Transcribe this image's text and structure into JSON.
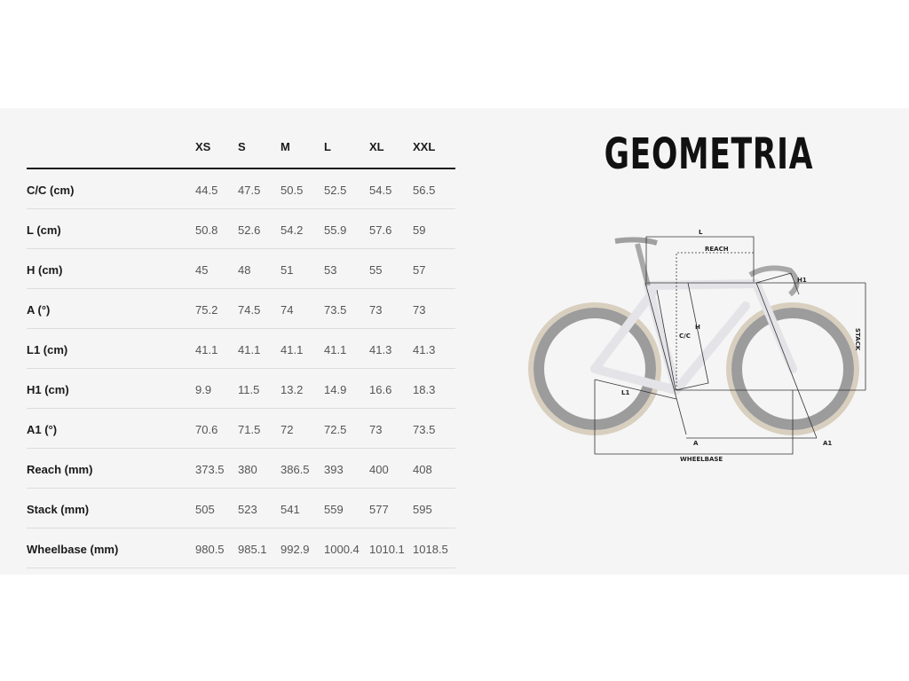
{
  "title": "GEOMETRIA",
  "table": {
    "sizes": [
      "XS",
      "S",
      "M",
      "L",
      "XL",
      "XXL"
    ],
    "rows": [
      {
        "label": "C/C (cm)",
        "values": [
          "44.5",
          "47.5",
          "50.5",
          "52.5",
          "54.5",
          "56.5"
        ]
      },
      {
        "label": "L (cm)",
        "values": [
          "50.8",
          "52.6",
          "54.2",
          "55.9",
          "57.6",
          "59"
        ]
      },
      {
        "label": "H (cm)",
        "values": [
          "45",
          "48",
          "51",
          "53",
          "55",
          "57"
        ]
      },
      {
        "label": "A (°)",
        "values": [
          "75.2",
          "74.5",
          "74",
          "73.5",
          "73",
          "73"
        ]
      },
      {
        "label": "L1 (cm)",
        "values": [
          "41.1",
          "41.1",
          "41.1",
          "41.1",
          "41.3",
          "41.3"
        ]
      },
      {
        "label": "H1 (cm)",
        "values": [
          "9.9",
          "11.5",
          "13.2",
          "14.9",
          "16.6",
          "18.3"
        ]
      },
      {
        "label": "A1 (°)",
        "values": [
          "70.6",
          "71.5",
          "72",
          "72.5",
          "73",
          "73.5"
        ]
      },
      {
        "label": "Reach (mm)",
        "values": [
          "373.5",
          "380",
          "386.5",
          "393",
          "400",
          "408"
        ]
      },
      {
        "label": "Stack (mm)",
        "values": [
          "505",
          "523",
          "541",
          "559",
          "577",
          "595"
        ]
      },
      {
        "label": "Wheelbase (mm)",
        "values": [
          "980.5",
          "985.1",
          "992.9",
          "1000.4",
          "1010.1",
          "1018.5"
        ]
      }
    ]
  },
  "diagram": {
    "labels": {
      "l": "L",
      "reach": "REACH",
      "h1": "H1",
      "stack": "STACK",
      "cc": "C/C",
      "h": "H",
      "l1": "L1",
      "a": "A",
      "a1": "A1",
      "wheelbase": "WHEELBASE"
    }
  }
}
